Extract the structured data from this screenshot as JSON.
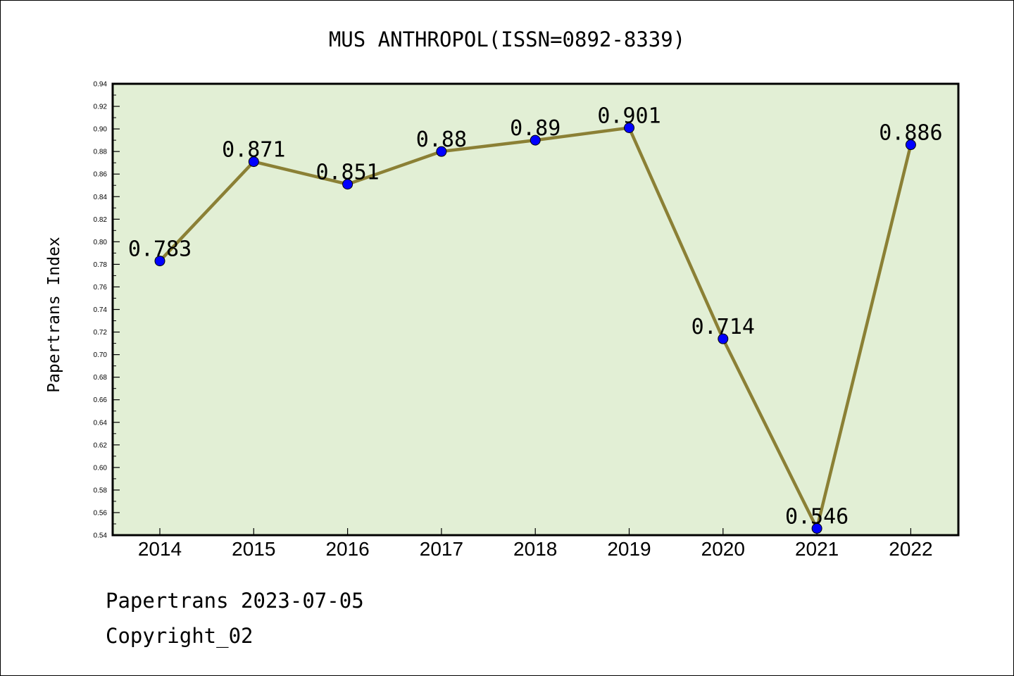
{
  "chart_data": {
    "type": "line",
    "title": "MUS ANTHROPOL(ISSN=0892-8339)",
    "xlabel": "",
    "ylabel": "Papertrans Index",
    "categories": [
      "2014",
      "2015",
      "2016",
      "2017",
      "2018",
      "2019",
      "2020",
      "2021",
      "2022"
    ],
    "series": [
      {
        "values": [
          0.783,
          0.871,
          0.851,
          0.88,
          0.89,
          0.901,
          0.714,
          0.546,
          0.886
        ]
      }
    ],
    "data_labels": [
      "0.783",
      "0.871",
      "0.851",
      "0.88",
      "0.89",
      "0.901",
      "0.714",
      "0.546",
      "0.886"
    ],
    "ylim": [
      0.54,
      0.94
    ],
    "yticks": [
      "0.54",
      "0.56",
      "0.58",
      "0.60",
      "0.62",
      "0.64",
      "0.66",
      "0.68",
      "0.70",
      "0.72",
      "0.74",
      "0.76",
      "0.78",
      "0.80",
      "0.82",
      "0.84",
      "0.86",
      "0.88",
      "0.90",
      "0.92",
      "0.94"
    ],
    "grid": false,
    "colors": {
      "plot_background": "#e2efd5",
      "line": "#8b8035",
      "marker": "#0000ff"
    }
  },
  "footer": {
    "line1": "Papertrans 2023-07-05",
    "line2": "Copyright_02"
  }
}
